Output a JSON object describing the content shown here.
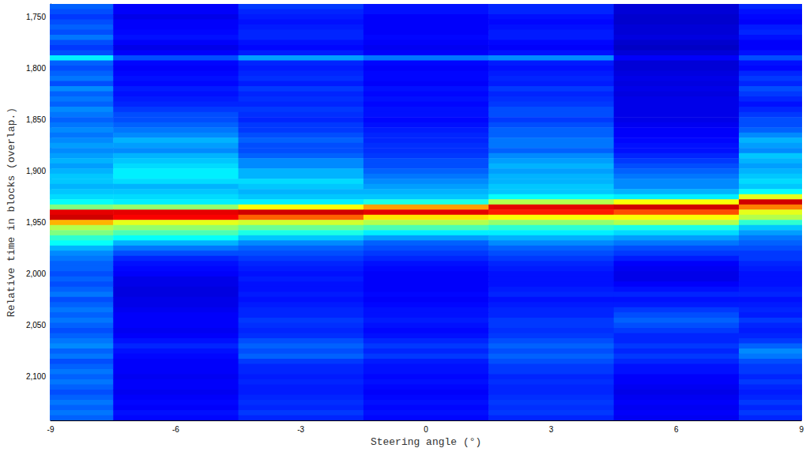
{
  "chart_data": {
    "type": "heatmap",
    "xlabel": "Steering angle (°)",
    "ylabel": "Relative time in blocks (overlap.)",
    "x": [
      -9,
      -6,
      -3,
      0,
      3,
      6,
      9
    ],
    "xlim": [
      -9,
      9
    ],
    "xticks": [
      -9,
      -6,
      -3,
      0,
      3,
      6,
      9
    ],
    "y": [
      1740,
      1745,
      1750,
      1755,
      1760,
      1765,
      1770,
      1775,
      1780,
      1785,
      1790,
      1795,
      1800,
      1805,
      1810,
      1815,
      1820,
      1825,
      1830,
      1835,
      1840,
      1845,
      1850,
      1855,
      1860,
      1865,
      1870,
      1875,
      1880,
      1885,
      1890,
      1895,
      1900,
      1905,
      1910,
      1915,
      1920,
      1925,
      1930,
      1935,
      1940,
      1945,
      1950,
      1955,
      1960,
      1965,
      1970,
      1975,
      1980,
      1985,
      1990,
      1995,
      2000,
      2005,
      2010,
      2015,
      2020,
      2025,
      2030,
      2035,
      2040,
      2045,
      2050,
      2055,
      2060,
      2065,
      2070,
      2075,
      2080,
      2085,
      2090,
      2095,
      2100,
      2105,
      2110,
      2115,
      2120,
      2125,
      2130,
      2135,
      2140
    ],
    "ylim": [
      1737.5,
      2142.5
    ],
    "yticks": [
      1750,
      1800,
      1850,
      1900,
      1950,
      2000,
      2050,
      2100
    ],
    "clim": [
      0,
      1
    ],
    "values": [
      [
        0.22,
        0.12,
        0.18,
        0.14,
        0.16,
        0.08,
        0.16
      ],
      [
        0.2,
        0.12,
        0.16,
        0.14,
        0.16,
        0.08,
        0.14
      ],
      [
        0.18,
        0.1,
        0.15,
        0.12,
        0.14,
        0.07,
        0.13
      ],
      [
        0.2,
        0.12,
        0.14,
        0.12,
        0.13,
        0.07,
        0.12
      ],
      [
        0.22,
        0.12,
        0.15,
        0.12,
        0.14,
        0.08,
        0.15
      ],
      [
        0.2,
        0.13,
        0.16,
        0.12,
        0.15,
        0.08,
        0.16
      ],
      [
        0.24,
        0.14,
        0.16,
        0.13,
        0.15,
        0.09,
        0.14
      ],
      [
        0.2,
        0.12,
        0.14,
        0.12,
        0.13,
        0.07,
        0.12
      ],
      [
        0.18,
        0.1,
        0.13,
        0.11,
        0.12,
        0.06,
        0.12
      ],
      [
        0.2,
        0.12,
        0.15,
        0.12,
        0.14,
        0.08,
        0.14
      ],
      [
        0.36,
        0.2,
        0.28,
        0.24,
        0.26,
        0.12,
        0.2
      ],
      [
        0.22,
        0.13,
        0.16,
        0.13,
        0.15,
        0.08,
        0.14
      ],
      [
        0.2,
        0.12,
        0.15,
        0.12,
        0.14,
        0.08,
        0.13
      ],
      [
        0.22,
        0.13,
        0.16,
        0.13,
        0.15,
        0.09,
        0.16
      ],
      [
        0.24,
        0.14,
        0.17,
        0.13,
        0.16,
        0.1,
        0.18
      ],
      [
        0.2,
        0.13,
        0.15,
        0.12,
        0.15,
        0.09,
        0.16
      ],
      [
        0.26,
        0.15,
        0.18,
        0.14,
        0.18,
        0.1,
        0.2
      ],
      [
        0.22,
        0.14,
        0.16,
        0.13,
        0.16,
        0.09,
        0.18
      ],
      [
        0.24,
        0.15,
        0.17,
        0.14,
        0.17,
        0.1,
        0.16
      ],
      [
        0.22,
        0.16,
        0.16,
        0.13,
        0.18,
        0.1,
        0.14
      ],
      [
        0.26,
        0.18,
        0.18,
        0.14,
        0.2,
        0.1,
        0.16
      ],
      [
        0.24,
        0.2,
        0.17,
        0.14,
        0.2,
        0.1,
        0.18
      ],
      [
        0.22,
        0.2,
        0.16,
        0.13,
        0.18,
        0.1,
        0.2
      ],
      [
        0.24,
        0.22,
        0.18,
        0.14,
        0.2,
        0.11,
        0.2
      ],
      [
        0.26,
        0.24,
        0.18,
        0.15,
        0.22,
        0.12,
        0.22
      ],
      [
        0.24,
        0.26,
        0.2,
        0.16,
        0.22,
        0.12,
        0.26
      ],
      [
        0.26,
        0.3,
        0.22,
        0.16,
        0.24,
        0.13,
        0.3
      ],
      [
        0.28,
        0.28,
        0.2,
        0.17,
        0.24,
        0.14,
        0.28
      ],
      [
        0.26,
        0.26,
        0.2,
        0.17,
        0.22,
        0.14,
        0.26
      ],
      [
        0.28,
        0.3,
        0.22,
        0.18,
        0.26,
        0.16,
        0.32
      ],
      [
        0.3,
        0.32,
        0.26,
        0.2,
        0.28,
        0.18,
        0.3
      ],
      [
        0.28,
        0.34,
        0.26,
        0.2,
        0.3,
        0.2,
        0.28
      ],
      [
        0.3,
        0.36,
        0.3,
        0.22,
        0.28,
        0.22,
        0.3
      ],
      [
        0.32,
        0.36,
        0.3,
        0.24,
        0.3,
        0.24,
        0.32
      ],
      [
        0.32,
        0.34,
        0.34,
        0.26,
        0.3,
        0.26,
        0.34
      ],
      [
        0.3,
        0.3,
        0.32,
        0.28,
        0.32,
        0.26,
        0.32
      ],
      [
        0.32,
        0.32,
        0.3,
        0.3,
        0.32,
        0.3,
        0.38
      ],
      [
        0.34,
        0.34,
        0.32,
        0.32,
        0.38,
        0.36,
        0.6
      ],
      [
        0.38,
        0.36,
        0.36,
        0.4,
        0.55,
        0.62,
        0.92
      ],
      [
        0.5,
        0.52,
        0.62,
        0.72,
        0.9,
        0.92,
        0.75
      ],
      [
        0.9,
        0.9,
        0.92,
        0.9,
        0.85,
        0.8,
        0.6
      ],
      [
        0.92,
        0.88,
        0.78,
        0.65,
        0.62,
        0.62,
        0.55
      ],
      [
        0.7,
        0.6,
        0.58,
        0.55,
        0.52,
        0.55,
        0.42
      ],
      [
        0.55,
        0.52,
        0.48,
        0.45,
        0.42,
        0.4,
        0.32
      ],
      [
        0.5,
        0.45,
        0.4,
        0.36,
        0.36,
        0.34,
        0.28
      ],
      [
        0.42,
        0.38,
        0.32,
        0.28,
        0.3,
        0.28,
        0.24
      ],
      [
        0.38,
        0.3,
        0.26,
        0.22,
        0.26,
        0.24,
        0.22
      ],
      [
        0.3,
        0.24,
        0.22,
        0.2,
        0.22,
        0.2,
        0.2
      ],
      [
        0.26,
        0.2,
        0.2,
        0.18,
        0.2,
        0.18,
        0.18
      ],
      [
        0.24,
        0.16,
        0.18,
        0.16,
        0.18,
        0.15,
        0.18
      ],
      [
        0.22,
        0.14,
        0.16,
        0.14,
        0.16,
        0.12,
        0.16
      ],
      [
        0.22,
        0.13,
        0.15,
        0.13,
        0.15,
        0.11,
        0.15
      ],
      [
        0.2,
        0.12,
        0.14,
        0.12,
        0.14,
        0.1,
        0.14
      ],
      [
        0.22,
        0.1,
        0.15,
        0.12,
        0.14,
        0.1,
        0.14
      ],
      [
        0.2,
        0.1,
        0.14,
        0.12,
        0.14,
        0.12,
        0.14
      ],
      [
        0.22,
        0.09,
        0.14,
        0.12,
        0.15,
        0.14,
        0.15
      ],
      [
        0.24,
        0.09,
        0.15,
        0.13,
        0.16,
        0.16,
        0.16
      ],
      [
        0.2,
        0.1,
        0.14,
        0.12,
        0.14,
        0.14,
        0.14
      ],
      [
        0.22,
        0.1,
        0.15,
        0.13,
        0.15,
        0.15,
        0.15
      ],
      [
        0.24,
        0.11,
        0.16,
        0.14,
        0.16,
        0.18,
        0.16
      ],
      [
        0.22,
        0.12,
        0.16,
        0.14,
        0.16,
        0.2,
        0.15
      ],
      [
        0.24,
        0.12,
        0.18,
        0.15,
        0.18,
        0.22,
        0.18
      ],
      [
        0.22,
        0.12,
        0.17,
        0.14,
        0.18,
        0.2,
        0.16
      ],
      [
        0.2,
        0.11,
        0.16,
        0.13,
        0.17,
        0.18,
        0.15
      ],
      [
        0.22,
        0.12,
        0.17,
        0.14,
        0.18,
        0.16,
        0.16
      ],
      [
        0.24,
        0.14,
        0.2,
        0.16,
        0.2,
        0.16,
        0.18
      ],
      [
        0.26,
        0.16,
        0.22,
        0.18,
        0.22,
        0.18,
        0.22
      ],
      [
        0.22,
        0.14,
        0.2,
        0.16,
        0.2,
        0.16,
        0.26
      ],
      [
        0.24,
        0.13,
        0.22,
        0.18,
        0.22,
        0.18,
        0.24
      ],
      [
        0.2,
        0.12,
        0.18,
        0.15,
        0.2,
        0.16,
        0.2
      ],
      [
        0.22,
        0.12,
        0.16,
        0.14,
        0.18,
        0.14,
        0.18
      ],
      [
        0.24,
        0.12,
        0.16,
        0.14,
        0.18,
        0.14,
        0.18
      ],
      [
        0.22,
        0.11,
        0.15,
        0.13,
        0.16,
        0.12,
        0.16
      ],
      [
        0.24,
        0.12,
        0.16,
        0.14,
        0.17,
        0.12,
        0.18
      ],
      [
        0.22,
        0.12,
        0.15,
        0.13,
        0.16,
        0.11,
        0.16
      ],
      [
        0.2,
        0.11,
        0.15,
        0.12,
        0.16,
        0.1,
        0.15
      ],
      [
        0.22,
        0.12,
        0.16,
        0.13,
        0.17,
        0.11,
        0.16
      ],
      [
        0.24,
        0.13,
        0.17,
        0.14,
        0.18,
        0.12,
        0.18
      ],
      [
        0.22,
        0.12,
        0.16,
        0.13,
        0.17,
        0.11,
        0.16
      ],
      [
        0.24,
        0.14,
        0.18,
        0.14,
        0.18,
        0.12,
        0.18
      ],
      [
        0.22,
        0.13,
        0.16,
        0.13,
        0.16,
        0.11,
        0.16
      ]
    ]
  }
}
